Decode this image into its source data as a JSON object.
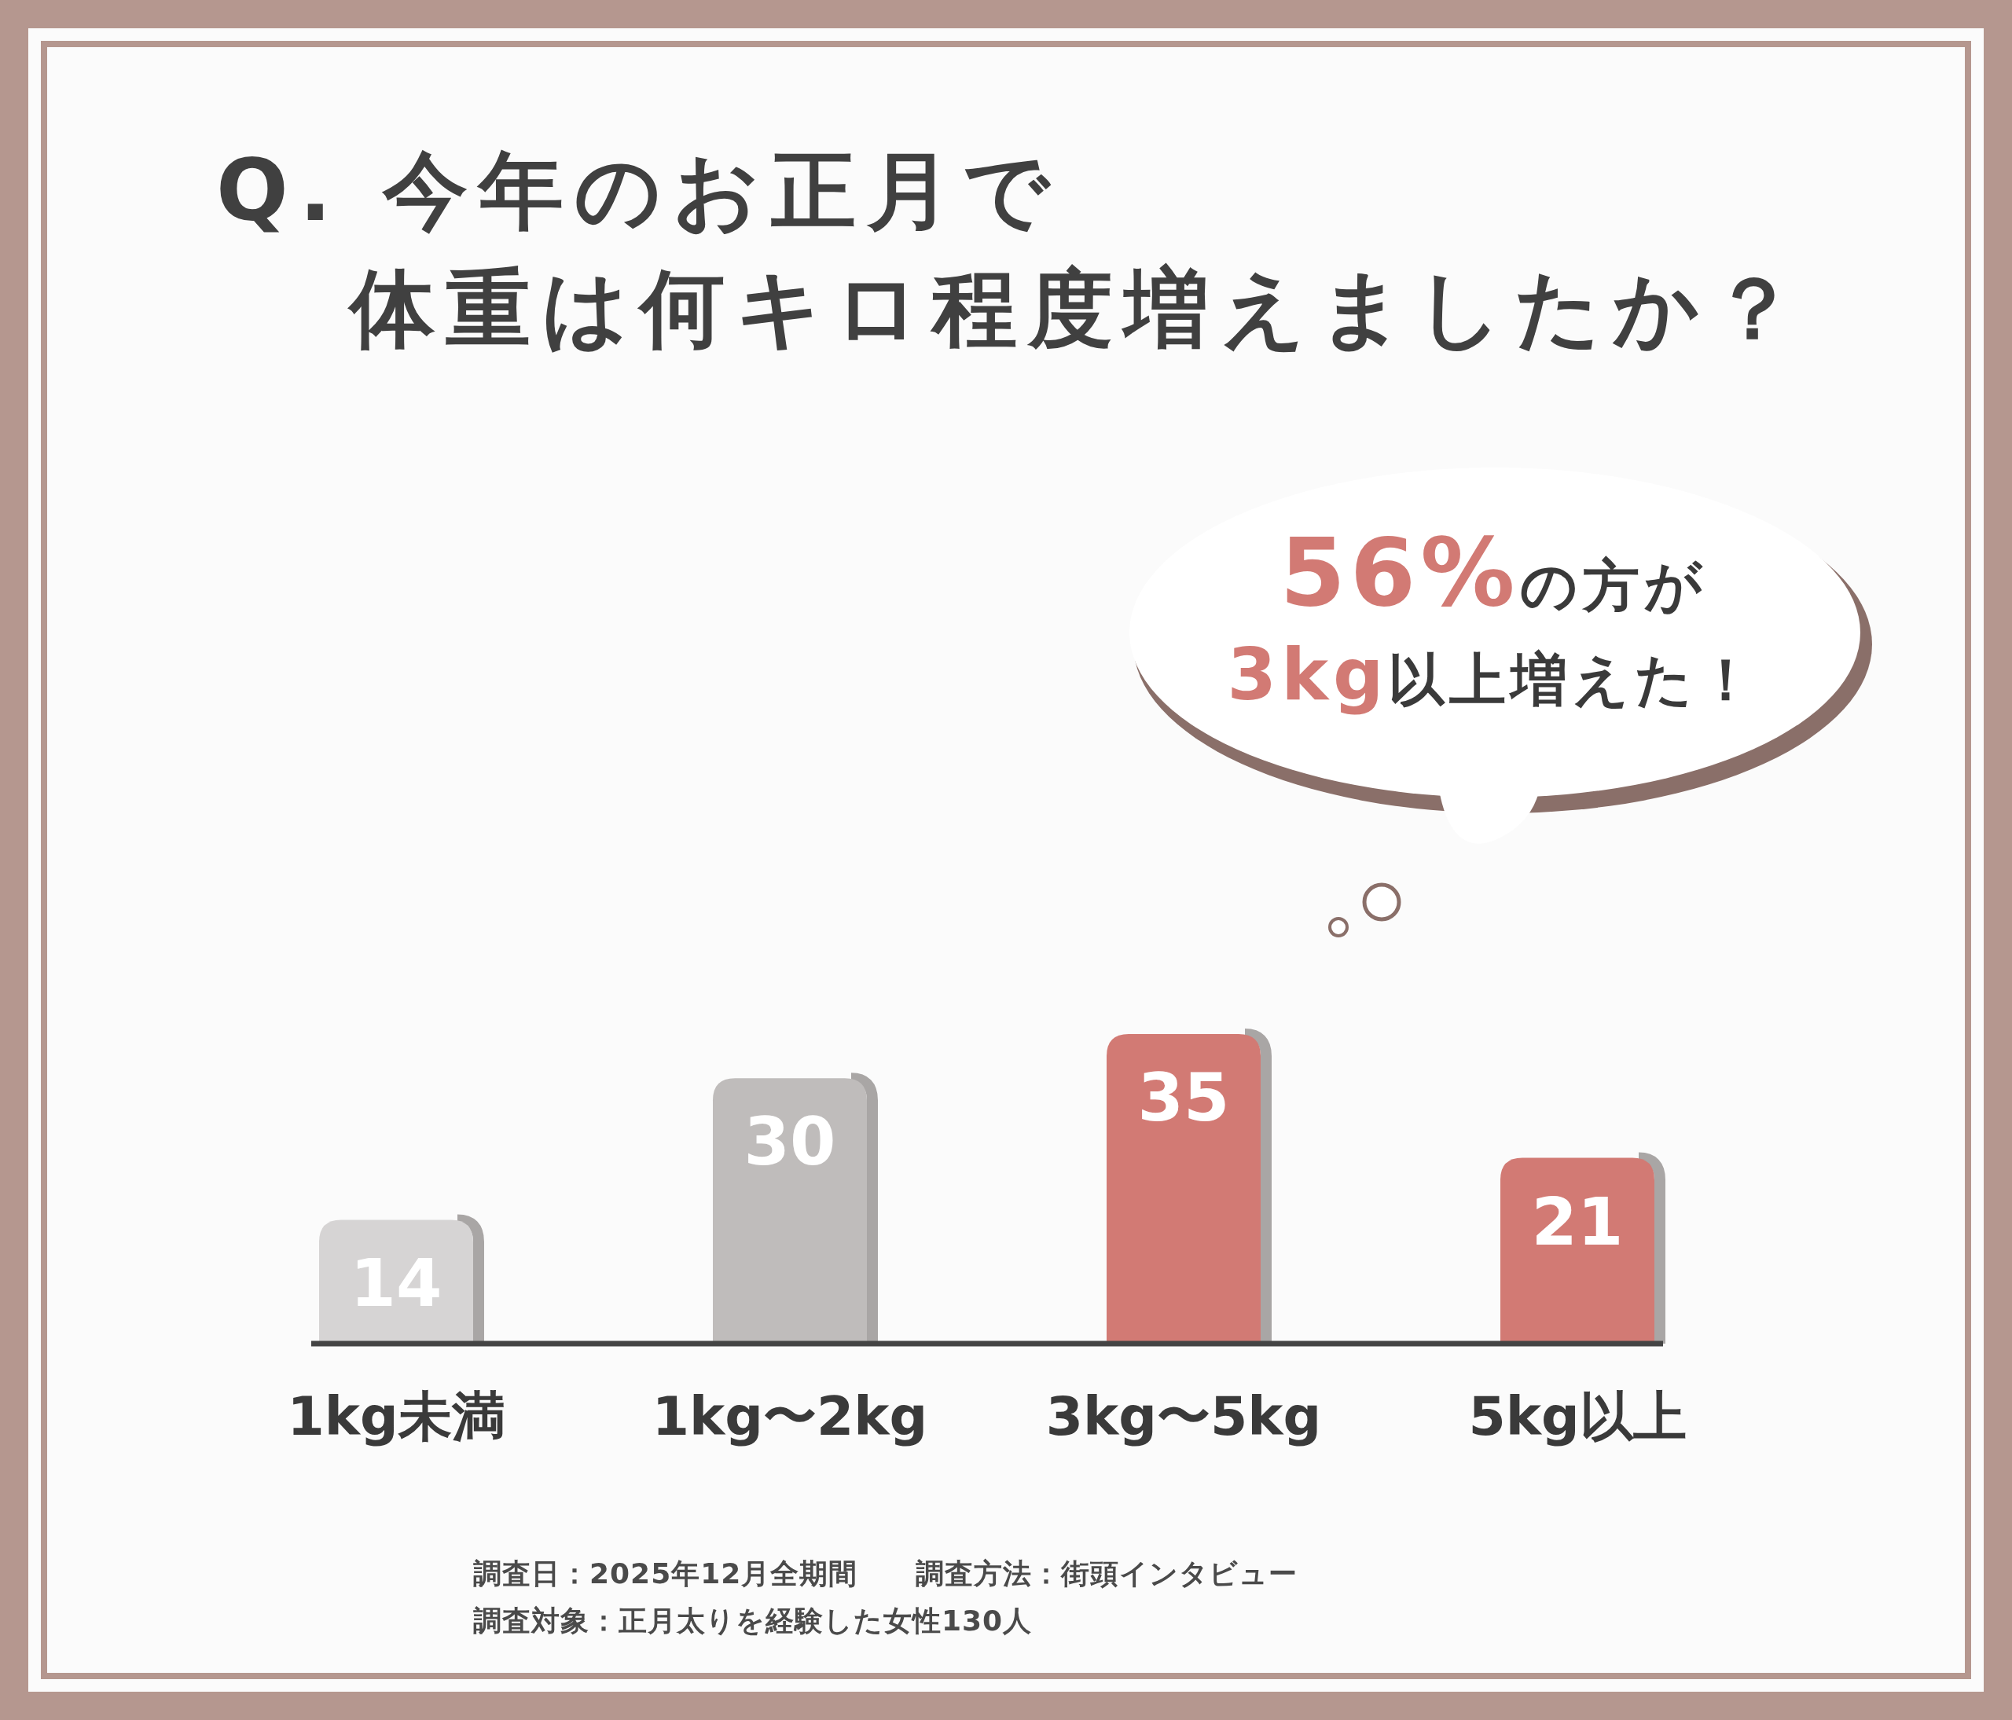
{
  "chart_data": {
    "type": "bar",
    "title": "Q. 今年のお正月で",
    "subtitle": "体重は何キロ程度増えましたか？",
    "categories": [
      "1kg未満",
      "1kg〜2kg",
      "3kg〜5kg",
      "5kg以上"
    ],
    "values": [
      14,
      30,
      35,
      21
    ],
    "colors": [
      "#d6d4d4",
      "#bfbcbb",
      "#d27a74",
      "#d27a74"
    ],
    "data_labels": true,
    "annotations": [
      "56%の方が",
      "3kg以上増えた！",
      "調査日：2025年12月全期間　　調査方法：街頭インタビュー",
      "調査対象：正月太りを経験した女性130人"
    ]
  }
}
